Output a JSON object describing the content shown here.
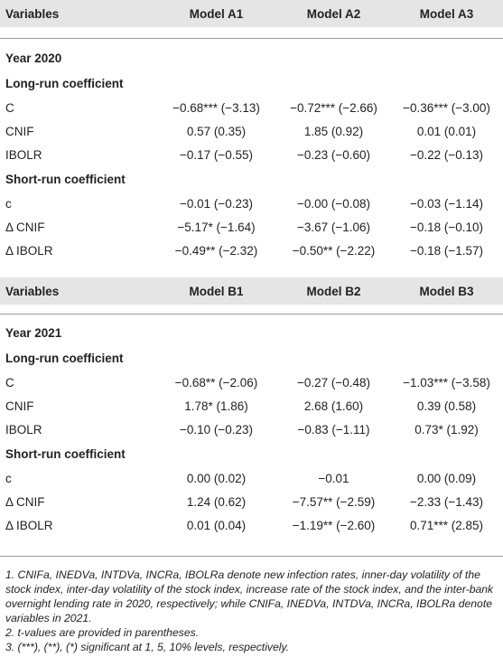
{
  "panelA": {
    "header": [
      "Variables",
      "Model A1",
      "Model A2",
      "Model A3"
    ],
    "year": "Year 2020",
    "long_title": "Long-run coefficient",
    "long_rows": [
      {
        "var": "C",
        "v1": "−0.68*** (−3.13)",
        "v2": "−0.72*** (−2.66)",
        "v3": "−0.36*** (−3.00)"
      },
      {
        "var": "CNIF",
        "v1": "0.57 (0.35)",
        "v2": "1.85 (0.92)",
        "v3": "0.01 (0.01)"
      },
      {
        "var": "IBOLR",
        "v1": "−0.17 (−0.55)",
        "v2": "−0.23 (−0.60)",
        "v3": "−0.22 (−0.13)"
      }
    ],
    "short_title": "Short-run coefficient",
    "short_rows": [
      {
        "var": "c",
        "v1": "−0.01 (−0.23)",
        "v2": "−0.00 (−0.08)",
        "v3": "−0.03 (−1.14)"
      },
      {
        "var": "Δ CNIF",
        "v1": "−5.17* (−1.64)",
        "v2": "−3.67 (−1.06)",
        "v3": "−0.18 (−0.10)"
      },
      {
        "var": "Δ IBOLR",
        "v1": "−0.49** (−2.32)",
        "v2": "−0.50** (−2.22)",
        "v3": "−0.18 (−1.57)"
      }
    ]
  },
  "panelB": {
    "header": [
      "Variables",
      "Model B1",
      "Model B2",
      "Model B3"
    ],
    "year": "Year 2021",
    "long_title": "Long-run coefficient",
    "long_rows": [
      {
        "var": "C",
        "v1": "−0.68** (−2.06)",
        "v2": "−0.27 (−0.48)",
        "v3": "−1.03*** (−3.58)"
      },
      {
        "var": "CNIF",
        "v1": "1.78* (1.86)",
        "v2": "2.68 (1.60)",
        "v3": "0.39 (0.58)"
      },
      {
        "var": "IBOLR",
        "v1": "−0.10 (−0.23)",
        "v2": "−0.83 (−1.11)",
        "v3": "0.73* (1.92)"
      }
    ],
    "short_title": "Short-run coefficient",
    "short_rows": [
      {
        "var": "c",
        "v1": "0.00 (0.02)",
        "v2": "−0.01",
        "v3": "0.00 (0.09)"
      },
      {
        "var": "Δ CNIF",
        "v1": "1.24 (0.62)",
        "v2": "−7.57** (−2.59)",
        "v3": "−2.33 (−1.43)"
      },
      {
        "var": "Δ IBOLR",
        "v1": "0.01 (0.04)",
        "v2": "−1.19** (−2.60)",
        "v3": "0.71*** (2.85)"
      }
    ]
  },
  "notes": [
    "1. CNIFa, INEDVa, INTDVa, INCRa, IBOLRa denote new infection rates, inner-day volatility of the stock index, inter-day volatility of the stock index, increase rate of the stock index, and the inter-bank overnight lending rate in 2020, respectively; while CNIFa, INEDVa, INTDVa, INCRa, IBOLRa denote variables in 2021.",
    "2. t-values are provided in parentheses.",
    "3. (***), (**), (*) significant at 1, 5, 10% levels, respectively."
  ]
}
